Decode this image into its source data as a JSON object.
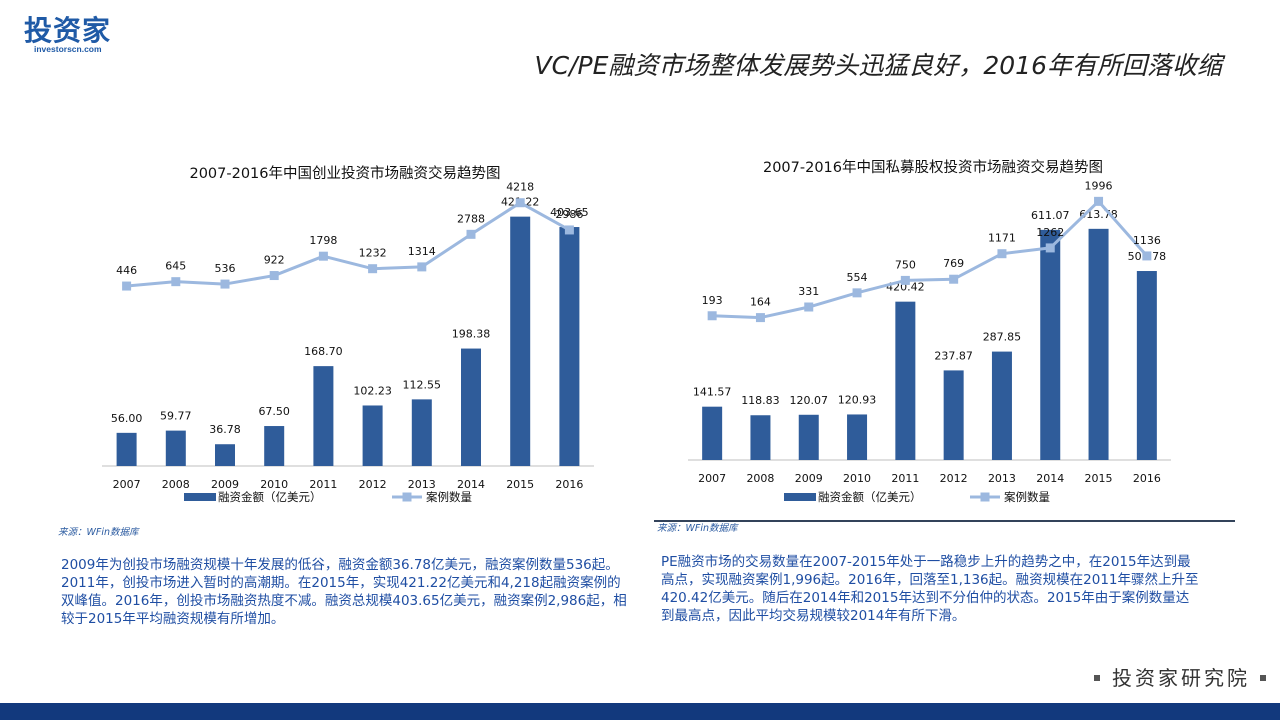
{
  "logo": {
    "main": "投资家",
    "sub": "investorscn.com"
  },
  "page_title": "VC/PE融资市场整体发展势头迅猛良好，2016年有所回落收缩",
  "colors": {
    "bar": "#2f5c9a",
    "line": "#9cb8df",
    "axis": "#bfbfbf",
    "bottom_bar": "#12397d",
    "desc_text": "#1f4ea3"
  },
  "chart_data": [
    {
      "type": "bar",
      "title": "2007-2016年中国创业投资市场融资交易趋势图",
      "categories": [
        "2007",
        "2008",
        "2009",
        "2010",
        "2011",
        "2012",
        "2013",
        "2014",
        "2015",
        "2016"
      ],
      "series": [
        {
          "name": "融资金额（亿美元）",
          "kind": "bar",
          "values": [
            56.0,
            59.77,
            36.78,
            67.5,
            168.7,
            102.23,
            112.55,
            198.38,
            421.22,
            403.65
          ],
          "labels": [
            "56.00",
            "59.77",
            "36.78",
            "67.50",
            "168.70",
            "102.23",
            "112.55",
            "198.38",
            "421.22",
            "403.65"
          ]
        },
        {
          "name": "案例数量",
          "kind": "line",
          "values": [
            446,
            645,
            536,
            922,
            1798,
            1232,
            1314,
            2788,
            4218,
            2986
          ],
          "labels": [
            "446",
            "645",
            "536",
            "922",
            "1798",
            "1232",
            "1314",
            "2788",
            "4218",
            "2986"
          ]
        }
      ],
      "ylim_bar": [
        0,
        500
      ],
      "ylim_line": [
        -7700,
        5700
      ],
      "legend": "bottom"
    },
    {
      "type": "bar",
      "title": "2007-2016年中国私募股权投资市场融资交易趋势图",
      "categories": [
        "2007",
        "2008",
        "2009",
        "2010",
        "2011",
        "2012",
        "2013",
        "2014",
        "2015",
        "2016"
      ],
      "series": [
        {
          "name": "融资金额（亿美元）",
          "kind": "bar",
          "values": [
            141.57,
            118.83,
            120.07,
            120.93,
            420.42,
            237.87,
            287.85,
            611.07,
            613.78,
            501.78
          ],
          "labels": [
            "141.57",
            "118.83",
            "120.07",
            "120.93",
            "420.42",
            "237.87",
            "287.85",
            "611.07",
            "613.78",
            "501.78"
          ]
        },
        {
          "name": "案例数量",
          "kind": "line",
          "values": [
            193,
            164,
            331,
            554,
            750,
            769,
            1171,
            1262,
            1996,
            1136
          ],
          "labels": [
            "193",
            "164",
            "331",
            "554",
            "750",
            "769",
            "1171",
            "1262",
            "1996",
            "1136"
          ]
        }
      ],
      "ylim_bar": [
        0,
        770
      ],
      "ylim_line": [
        -2080,
        2490
      ],
      "legend": "bottom"
    }
  ],
  "left_source": "来源：WFin数据库",
  "right_source": "来源：WFin数据库",
  "left_description": "2009年为创投市场融资规模十年发展的低谷，融资金额36.78亿美元，融资案例数量536起。2011年，创投市场进入暂时的高潮期。在2015年，实现421.22亿美元和4,218起融资案例的双峰值。2016年，创投市场融资热度不减。融资总规模403.65亿美元，融资案例2,986起，相较于2015年平均融资规模有所增加。",
  "right_description": "PE融资市场的交易数量在2007-2015年处于一路稳步上升的趋势之中，在2015年达到最高点，实现融资案例1,996起。2016年，回落至1,136起。融资规模在2011年骤然上升至420.42亿美元。随后在2014年和2015年达到不分伯仲的状态。2015年由于案例数量达到最高点，因此平均交易规模较2014年有所下滑。",
  "footer_label": "投资家研究院"
}
